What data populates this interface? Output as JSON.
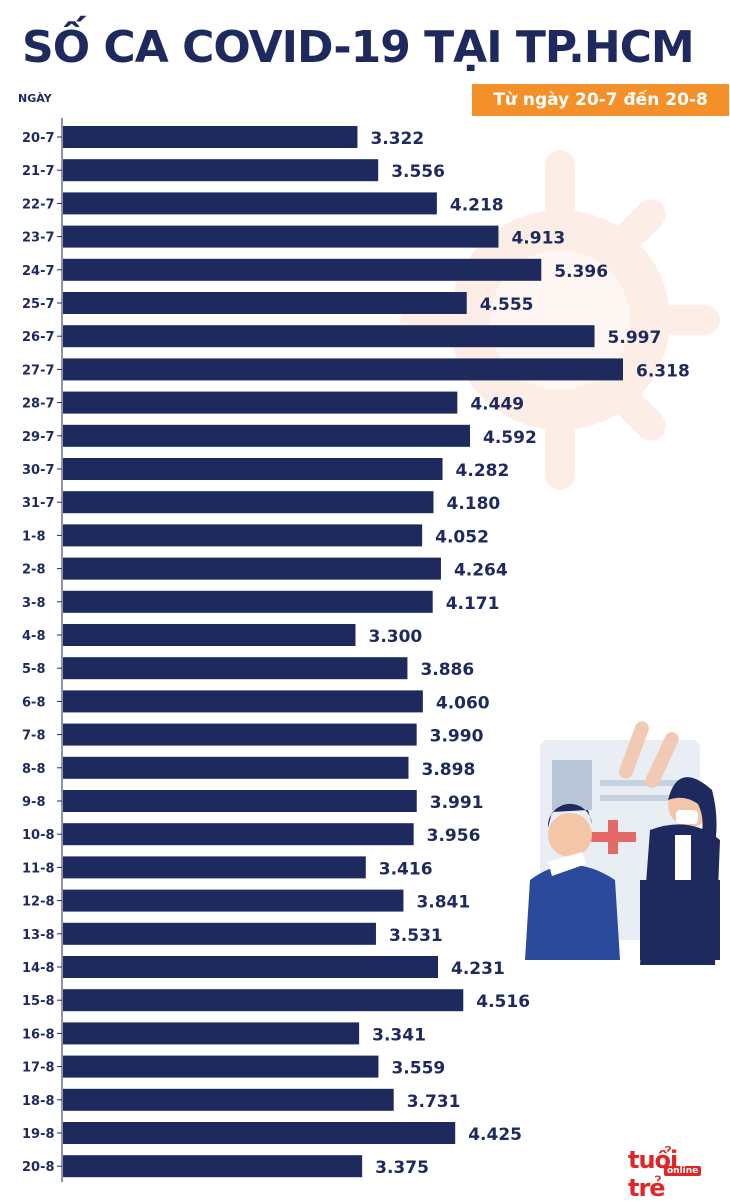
{
  "title": "SỐ CA COVID-19 TẠI TP.HCM",
  "subtitle": "Từ ngày 20-7 đến 20-8",
  "logo": {
    "main": "tuổi trẻ",
    "sub": "online"
  },
  "colors": {
    "bar": "#1e2a5e",
    "accent": "#f4902a",
    "logo": "#e02626"
  },
  "chart_data": {
    "type": "bar",
    "orientation": "horizontal",
    "title": "SỐ CA COVID-19 TẠI TP.HCM",
    "subtitle": "Từ ngày 20-7 đến 20-8",
    "ylabel": "NGÀY",
    "xlabel": "",
    "categories": [
      "20-7",
      "21-7",
      "22-7",
      "23-7",
      "24-7",
      "25-7",
      "26-7",
      "27-7",
      "28-7",
      "29-7",
      "30-7",
      "31-7",
      "1-8",
      "2-8",
      "3-8",
      "4-8",
      "5-8",
      "6-8",
      "7-8",
      "8-8",
      "9-8",
      "10-8",
      "11-8",
      "12-8",
      "13-8",
      "14-8",
      "15-8",
      "16-8",
      "17-8",
      "18-8",
      "19-8",
      "20-8"
    ],
    "values": [
      3322,
      3556,
      4218,
      4913,
      5396,
      4555,
      5997,
      6318,
      4449,
      4592,
      4282,
      4180,
      4052,
      4264,
      4171,
      3300,
      3886,
      4060,
      3990,
      3898,
      3991,
      3956,
      3416,
      3841,
      3531,
      4231,
      4516,
      3341,
      3559,
      3731,
      4425,
      3375
    ],
    "value_labels": [
      "3.322",
      "3.556",
      "4.218",
      "4.913",
      "5.396",
      "4.555",
      "5.997",
      "6.318",
      "4.449",
      "4.592",
      "4.282",
      "4.180",
      "4.052",
      "4.264",
      "4.171",
      "3.300",
      "3.886",
      "4.060",
      "3.990",
      "3.898",
      "3.991",
      "3.956",
      "3.416",
      "3.841",
      "3.531",
      "4.231",
      "4.516",
      "3.341",
      "3.559",
      "3.731",
      "4.425",
      "3.375"
    ],
    "xlim": [
      0,
      6318
    ],
    "grid": false,
    "legend": "none"
  }
}
